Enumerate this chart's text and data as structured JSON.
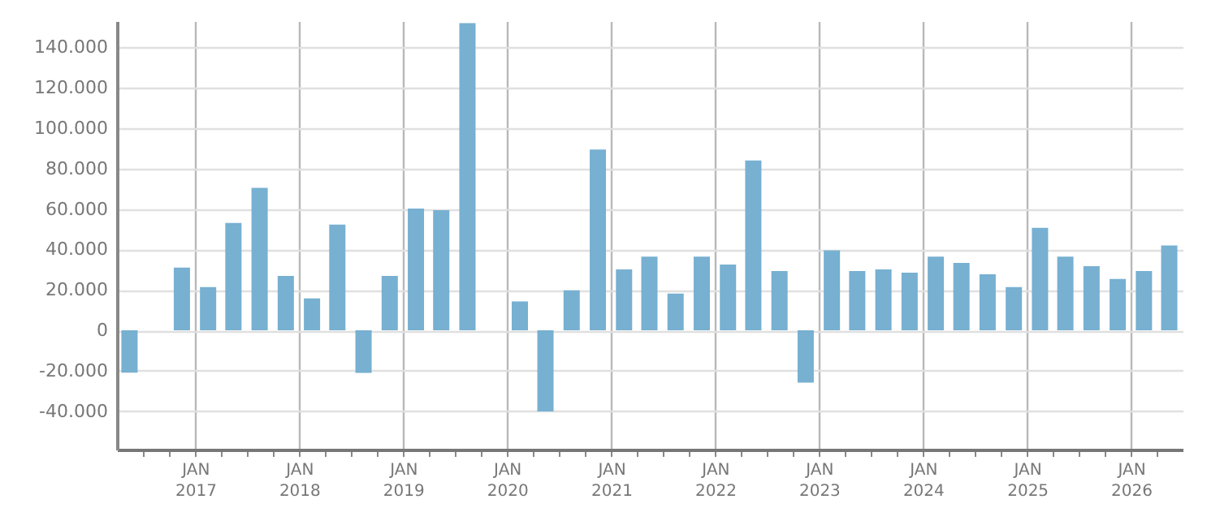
{
  "chart_data": {
    "type": "bar",
    "x": [
      "2016-05-15",
      "2016-08-15",
      "2016-11-15",
      "2017-02-15",
      "2017-05-15",
      "2017-08-15",
      "2017-11-15",
      "2018-02-15",
      "2018-05-15",
      "2018-08-15",
      "2018-11-15",
      "2019-02-15",
      "2019-05-15",
      "2019-08-15",
      "2019-11-15",
      "2020-02-15",
      "2020-05-15",
      "2020-08-15",
      "2020-11-15",
      "2021-02-15",
      "2021-05-15",
      "2021-08-15",
      "2021-11-15",
      "2022-02-15",
      "2022-05-15",
      "2022-08-15",
      "2022-11-15",
      "2023-02-15",
      "2023-05-15",
      "2023-08-15",
      "2023-11-15",
      "2024-02-15",
      "2024-05-15",
      "2024-08-15",
      "2024-11-15",
      "2025-02-15",
      "2025-05-15",
      "2025-08-15",
      "2025-11-15",
      "2026-02-15",
      "2026-05-15"
    ],
    "values": [
      -21000,
      null,
      31000,
      21400,
      53100,
      70500,
      26900,
      15800,
      52300,
      -21100,
      26900,
      60200,
      59400,
      152000,
      null,
      14300,
      -40100,
      19800,
      89500,
      30100,
      36500,
      18200,
      36500,
      32500,
      84000,
      29300,
      -25900,
      39600,
      29300,
      30100,
      28500,
      36500,
      33300,
      27700,
      21400,
      50700,
      36500,
      31700,
      25400,
      29300,
      42000
    ],
    "color": "#77b0d1",
    "xlim": [
      "2016-04-01",
      "2026-07-01"
    ],
    "xticks": [
      {
        "value": "2016-07-01",
        "label": null
      },
      {
        "value": "2016-10-01",
        "label": null
      },
      {
        "value": "2017-01-01",
        "label": "JAN\n2017"
      },
      {
        "value": "2017-04-01",
        "label": null
      },
      {
        "value": "2017-07-01",
        "label": null
      },
      {
        "value": "2017-10-01",
        "label": null
      },
      {
        "value": "2018-01-01",
        "label": "JAN\n2018"
      },
      {
        "value": "2018-04-01",
        "label": null
      },
      {
        "value": "2018-07-01",
        "label": null
      },
      {
        "value": "2018-10-01",
        "label": null
      },
      {
        "value": "2019-01-01",
        "label": "JAN\n2019"
      },
      {
        "value": "2019-04-01",
        "label": null
      },
      {
        "value": "2019-07-01",
        "label": null
      },
      {
        "value": "2019-10-01",
        "label": null
      },
      {
        "value": "2020-01-01",
        "label": "JAN\n2020"
      },
      {
        "value": "2020-04-01",
        "label": null
      },
      {
        "value": "2020-07-01",
        "label": null
      },
      {
        "value": "2020-10-01",
        "label": null
      },
      {
        "value": "2021-01-01",
        "label": "JAN\n2021"
      },
      {
        "value": "2021-04-01",
        "label": null
      },
      {
        "value": "2021-07-01",
        "label": null
      },
      {
        "value": "2021-10-01",
        "label": null
      },
      {
        "value": "2022-01-01",
        "label": "JAN\n2022"
      },
      {
        "value": "2022-04-01",
        "label": null
      },
      {
        "value": "2022-07-01",
        "label": null
      },
      {
        "value": "2022-10-01",
        "label": null
      },
      {
        "value": "2023-01-01",
        "label": "JAN\n2023"
      },
      {
        "value": "2023-04-01",
        "label": null
      },
      {
        "value": "2023-07-01",
        "label": null
      },
      {
        "value": "2023-10-01",
        "label": null
      },
      {
        "value": "2024-01-01",
        "label": "JAN\n2024"
      },
      {
        "value": "2024-04-01",
        "label": null
      },
      {
        "value": "2024-07-01",
        "label": null
      },
      {
        "value": "2024-10-01",
        "label": null
      },
      {
        "value": "2025-01-01",
        "label": "JAN\n2025"
      },
      {
        "value": "2025-04-01",
        "label": null
      },
      {
        "value": "2025-07-01",
        "label": null
      },
      {
        "value": "2025-10-01",
        "label": null
      },
      {
        "value": "2026-01-01",
        "label": "JAN\n2026"
      },
      {
        "value": "2026-04-01",
        "label": null
      }
    ],
    "ylim": [
      -59000,
      153000
    ],
    "yticks": [
      {
        "value": -40000,
        "label": "-40.000"
      },
      {
        "value": -20000,
        "label": "-20.000"
      },
      {
        "value": 0,
        "label": "0"
      },
      {
        "value": 20000,
        "label": "20.000"
      },
      {
        "value": 40000,
        "label": "40.000"
      },
      {
        "value": 60000,
        "label": "60.000"
      },
      {
        "value": 80000,
        "label": "80.000"
      },
      {
        "value": 100000,
        "label": "100.000"
      },
      {
        "value": 120000,
        "label": "120.000"
      },
      {
        "value": 140000,
        "label": "140.000"
      }
    ],
    "grid": true
  }
}
